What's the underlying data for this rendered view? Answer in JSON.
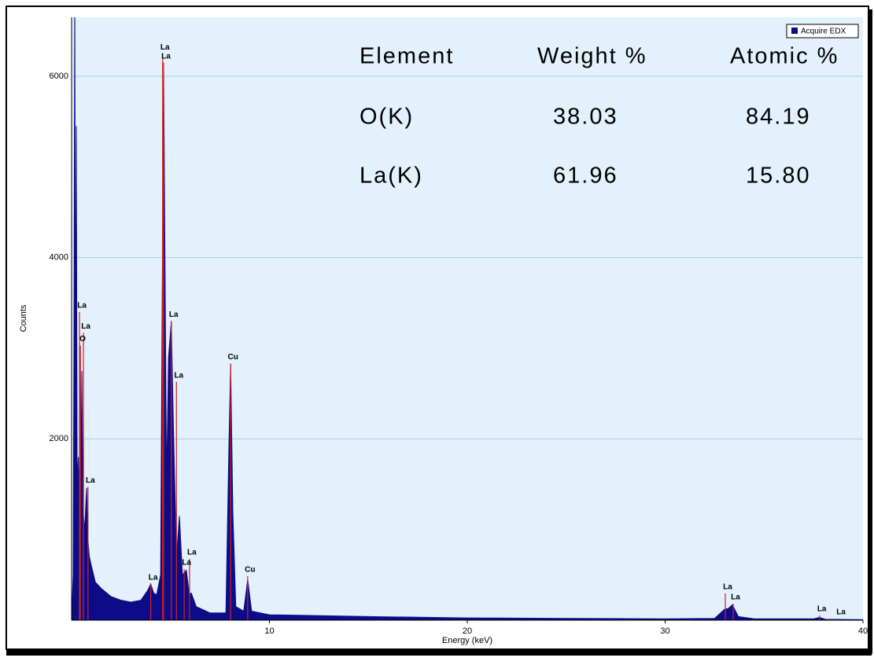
{
  "chart_data": {
    "type": "area",
    "x_label": "Energy (keV)",
    "y_label": "Counts",
    "xlim": [
      0,
      40
    ],
    "xticks": [
      10,
      20,
      30,
      40
    ],
    "ylim": [
      0,
      6650
    ],
    "yticks": [
      2000,
      4000,
      6000
    ],
    "grid": true,
    "series": [
      {
        "name": "Acquire EDX",
        "color": "#0c0c88",
        "x": [
          0,
          0.08,
          0.12,
          0.16,
          0.2,
          0.24,
          0.28,
          0.34,
          0.4,
          0.44,
          0.48,
          0.52,
          0.58,
          0.66,
          0.76,
          0.82,
          0.9,
          1.0,
          1.2,
          1.5,
          2.0,
          2.5,
          3.0,
          3.5,
          3.85,
          4.0,
          4.15,
          4.3,
          4.5,
          4.65,
          4.8,
          4.9,
          5.04,
          5.15,
          5.3,
          5.45,
          5.6,
          5.8,
          5.95,
          6.05,
          6.3,
          7.0,
          7.8,
          7.95,
          8.04,
          8.15,
          8.3,
          8.7,
          8.9,
          9.1,
          10,
          15,
          20,
          25,
          30,
          32.5,
          33.0,
          33.2,
          33.4,
          33.7,
          34.5,
          37.5,
          37.8,
          38.1,
          40
        ],
        "values": [
          0,
          500,
          3050,
          7000,
          2500,
          5450,
          1500,
          1800,
          1200,
          3030,
          1600,
          2750,
          1200,
          1000,
          1460,
          900,
          700,
          600,
          420,
          350,
          260,
          220,
          200,
          220,
          330,
          400,
          300,
          280,
          500,
          6150,
          1500,
          2900,
          3300,
          2100,
          700,
          1150,
          500,
          550,
          280,
          300,
          150,
          80,
          80,
          1900,
          2830,
          1200,
          150,
          100,
          450,
          100,
          60,
          40,
          25,
          20,
          15,
          20,
          120,
          130,
          170,
          40,
          15,
          15,
          30,
          10,
          5
        ]
      }
    ],
    "peak_labels": [
      {
        "text": "La",
        "energy": 0.4,
        "counts": 3400
      },
      {
        "text": "La",
        "energy": 0.6,
        "counts": 3170
      },
      {
        "text": "O",
        "energy": 0.44,
        "counts": 3030
      },
      {
        "text": "La",
        "energy": 0.83,
        "counts": 1470
      },
      {
        "text": "La",
        "energy": 4.0,
        "counts": 400
      },
      {
        "text": "La",
        "energy": 4.6,
        "counts": 6250
      },
      {
        "text": "La",
        "energy": 4.65,
        "counts": 6150
      },
      {
        "text": "La",
        "energy": 5.04,
        "counts": 3300
      },
      {
        "text": "La",
        "energy": 5.3,
        "counts": 2630
      },
      {
        "text": "La",
        "energy": 5.69,
        "counts": 565
      },
      {
        "text": "La",
        "energy": 5.96,
        "counts": 676
      },
      {
        "text": "Cu",
        "energy": 8.04,
        "counts": 2830
      },
      {
        "text": "Cu",
        "energy": 8.9,
        "counts": 486
      },
      {
        "text": "La",
        "energy": 33.04,
        "counts": 295
      },
      {
        "text": "La",
        "energy": 33.44,
        "counts": 182
      },
      {
        "text": "La",
        "energy": 37.8,
        "counts": 52
      },
      {
        "text": "La",
        "energy": 38.77,
        "counts": 17
      }
    ],
    "table": {
      "columns": [
        "Element",
        "Weight %",
        "Atomic %"
      ],
      "rows": [
        [
          "O(K)",
          "38.03",
          "84.19"
        ],
        [
          "La(K)",
          "61.96",
          "15.80"
        ]
      ]
    }
  }
}
